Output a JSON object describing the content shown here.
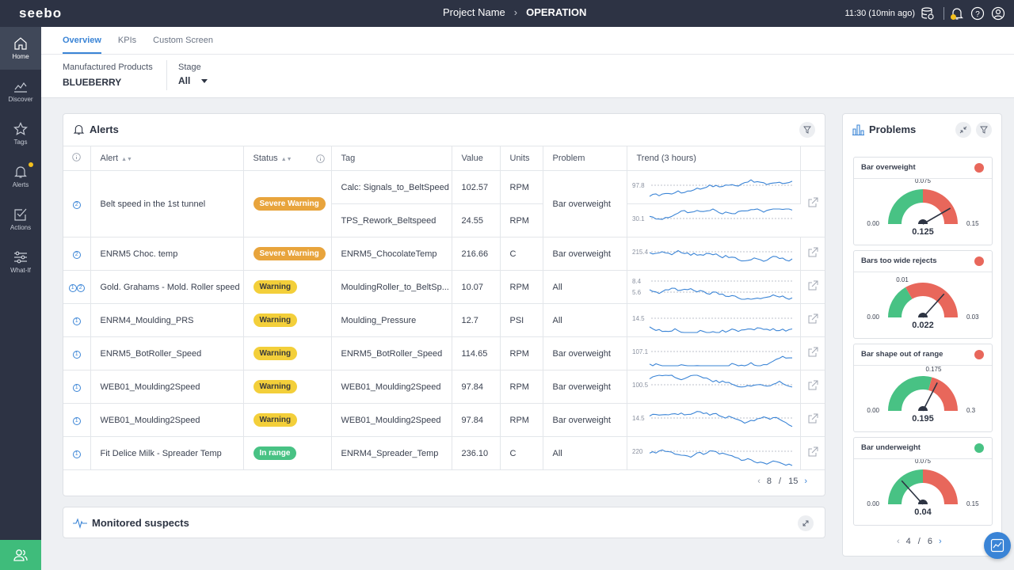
{
  "topbar": {
    "logo": "seebo",
    "project": "Project Name",
    "separator": "›",
    "page": "OPERATION",
    "time": "11:30 (10min ago)"
  },
  "sidebar": {
    "items": [
      {
        "label": "Home",
        "icon": "home-icon"
      },
      {
        "label": "Discover",
        "icon": "chart-line-icon"
      },
      {
        "label": "Tags",
        "icon": "star-icon"
      },
      {
        "label": "Alerts",
        "icon": "bell-icon"
      },
      {
        "label": "Actions",
        "icon": "checkbox-icon"
      },
      {
        "label": "What-If",
        "icon": "sliders-icon"
      }
    ]
  },
  "tabs": [
    "Overview",
    "KPIs",
    "Custom Screen"
  ],
  "filters": {
    "product": {
      "label": "Manufactured Products",
      "value": "BLUEBERRY"
    },
    "stage": {
      "label": "Stage",
      "value": "All"
    }
  },
  "alerts": {
    "title": "Alerts",
    "columns": [
      "Alert",
      "Status",
      "Tag",
      "Value",
      "Units",
      "Problem",
      "Trend (3 hours)"
    ],
    "rows": [
      {
        "num": [
          "2"
        ],
        "alert": "Belt speed in the 1st tunnel",
        "status": "Severe Warning",
        "level": "sev",
        "subs": [
          {
            "tag": "Calc: Signals_to_BeltSpeed",
            "value": "102.57",
            "units": "RPM",
            "ref": "97.8"
          },
          {
            "tag": "TPS_Rework_Beltspeed",
            "value": "24.55",
            "units": "RPM",
            "ref": "30.1"
          }
        ],
        "problem": "Bar overweight"
      },
      {
        "num": [
          "2"
        ],
        "alert": "ENRM5 Choc. temp",
        "status": "Severe Warning",
        "level": "sev",
        "tag": "ENRM5_ChocolateTemp",
        "value": "216.66",
        "units": "C",
        "problem": "Bar overweight",
        "ref": "215.4"
      },
      {
        "num": [
          "1",
          "2"
        ],
        "alert": "Gold. Grahams - Mold. Roller speed",
        "status": "Warning",
        "level": "warn",
        "tag": "MouldingRoller_to_BeltSp...",
        "value": "10.07",
        "units": "RPM",
        "problem": "All",
        "ref": "8.4",
        "ref2": "5.6"
      },
      {
        "num": [
          "1"
        ],
        "alert": "ENRM4_Moulding_PRS",
        "status": "Warning",
        "level": "warn",
        "tag": "Moulding_Pressure",
        "value": "12.7",
        "units": "PSI",
        "problem": "All",
        "ref": "14.5"
      },
      {
        "num": [
          "1"
        ],
        "alert": "ENRM5_BotRoller_Speed",
        "status": "Warning",
        "level": "warn",
        "tag": "ENRM5_BotRoller_Speed",
        "value": "114.65",
        "units": "RPM",
        "problem": "Bar overweight",
        "ref": "107.1"
      },
      {
        "num": [
          "1"
        ],
        "alert": "WEB01_Moulding2Speed",
        "status": "Warning",
        "level": "warn",
        "tag": "WEB01_Moulding2Speed",
        "value": "97.84",
        "units": "RPM",
        "problem": "Bar overweight",
        "ref": "100.5"
      },
      {
        "num": [
          "1"
        ],
        "alert": "WEB01_Moulding2Speed",
        "status": "Warning",
        "level": "warn",
        "tag": "WEB01_Moulding2Speed",
        "value": "97.84",
        "units": "RPM",
        "problem": "Bar overweight",
        "ref": "14.5"
      },
      {
        "num": [
          "1"
        ],
        "alert": "Fit Delice Milk - Spreader Temp",
        "status": "In range",
        "level": "ok",
        "tag": "ENRM4_Spreader_Temp",
        "value": "236.10",
        "units": "C",
        "problem": "All",
        "ref": "220"
      }
    ],
    "pager": {
      "current": "8",
      "sep": "/",
      "total": "15"
    }
  },
  "monitored": {
    "title": "Monitored suspects"
  },
  "problems": {
    "title": "Problems",
    "gauges": [
      {
        "title": "Bar overweight",
        "status_color": "#e8675b",
        "min": "0.00",
        "max": "0.15",
        "threshold": "0.075",
        "value": "0.125",
        "value_num": 0.125,
        "min_num": 0,
        "max_num": 0.15,
        "threshold_num": 0.075,
        "good_side": "low"
      },
      {
        "title": "Bars too wide rejects",
        "status_color": "#e8675b",
        "min": "0.00",
        "max": "0.03",
        "threshold": "0.01",
        "value": "0.022",
        "value_num": 0.022,
        "min_num": 0,
        "max_num": 0.03,
        "threshold_num": 0.01,
        "good_side": "low"
      },
      {
        "title": "Bar shape out of range",
        "status_color": "#e8675b",
        "min": "0.00",
        "max": "0.3",
        "threshold": "0.175",
        "value": "0.195",
        "value_num": 0.195,
        "min_num": 0,
        "max_num": 0.3,
        "threshold_num": 0.175,
        "good_side": "low"
      },
      {
        "title": "Bar underweight",
        "status_color": "#48c284",
        "min": "0.00",
        "max": "0.15",
        "threshold": "0.075",
        "value": "0.04",
        "value_num": 0.04,
        "min_num": 0,
        "max_num": 0.15,
        "threshold_num": 0.075,
        "good_side": "low"
      }
    ],
    "pager": {
      "current": "4",
      "sep": "/",
      "total": "6"
    }
  },
  "colors": {
    "accent": "#3a84d6",
    "sidebar": "#2d3344",
    "good": "#48c284",
    "bad": "#e8675b",
    "severe": "#e8a43c",
    "warning": "#f3cf3a"
  }
}
